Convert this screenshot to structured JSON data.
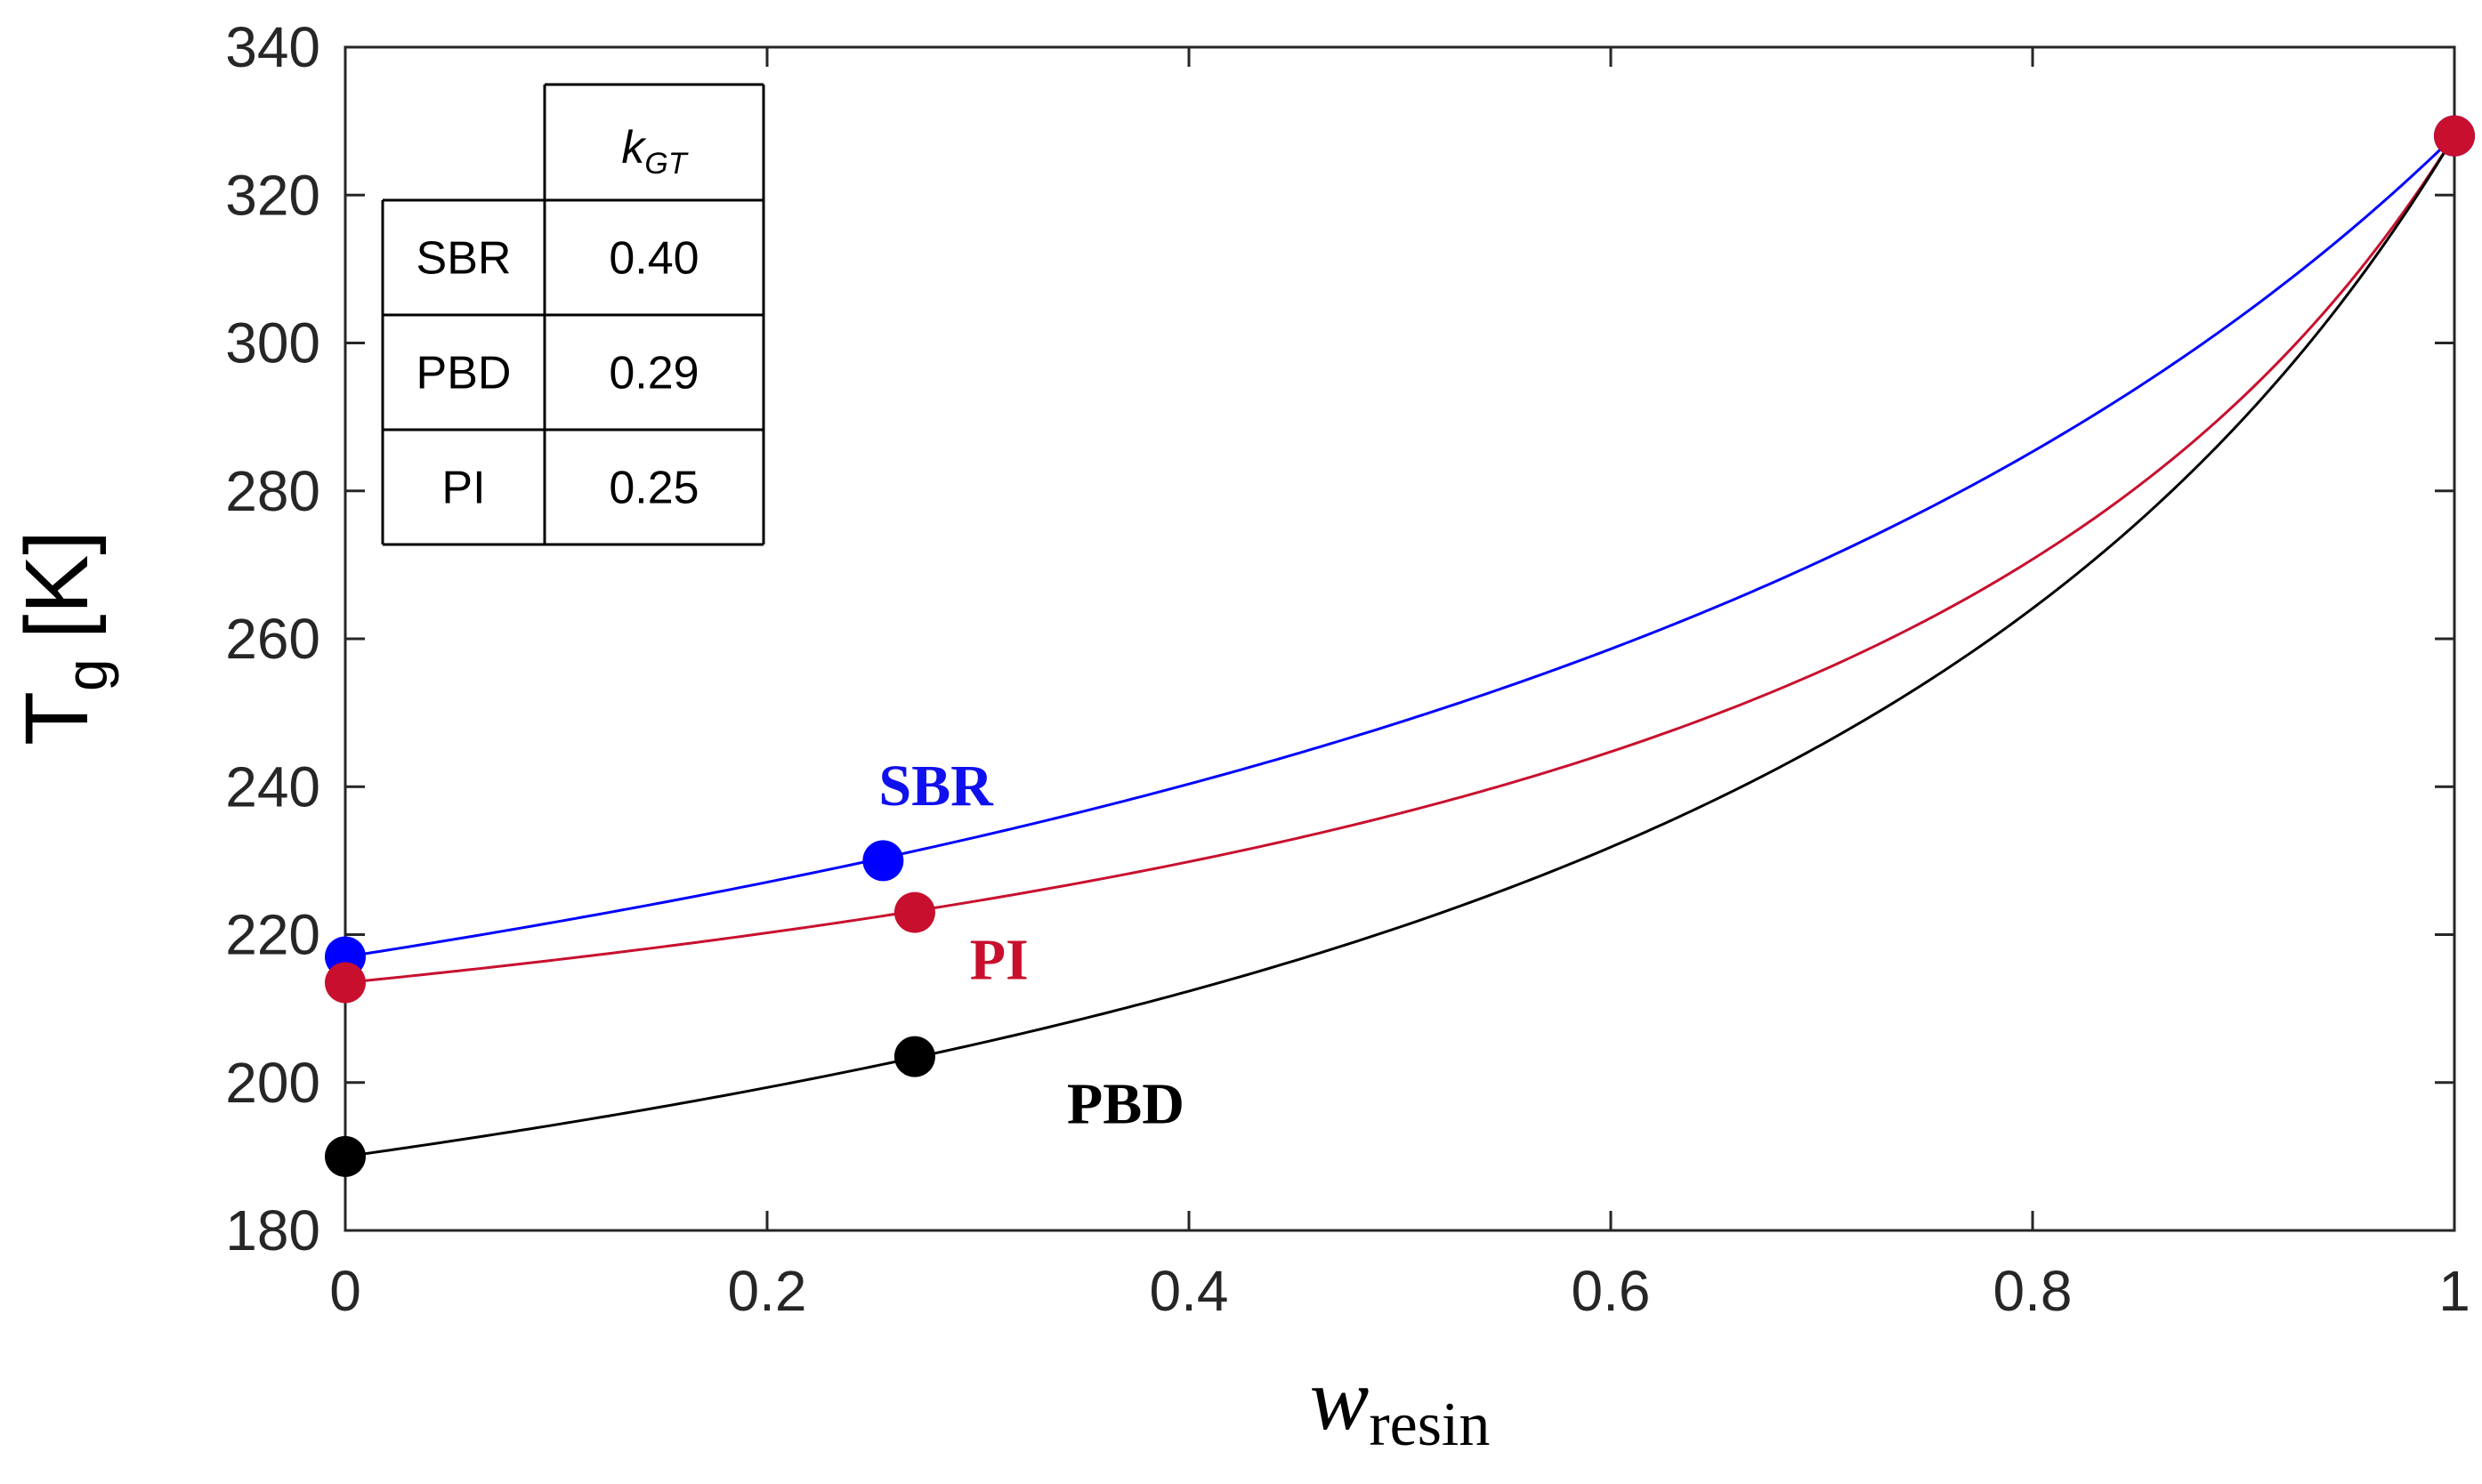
{
  "chart_data": {
    "type": "line",
    "title": "",
    "xlabel": {
      "main": "w",
      "sub": "resin"
    },
    "ylabel": {
      "main": "T",
      "sub": "g",
      "unit": "[K]"
    },
    "xlim": [
      0,
      1
    ],
    "ylim": [
      180,
      340
    ],
    "x_ticks": [
      0,
      0.2,
      0.4,
      0.6,
      0.8,
      1
    ],
    "x_tick_labels": [
      "0",
      "0.2",
      "0.4",
      "0.6",
      "0.8",
      "1"
    ],
    "y_ticks": [
      180,
      200,
      220,
      240,
      260,
      280,
      300,
      320,
      340
    ],
    "y_tick_labels": [
      "180",
      "200",
      "220",
      "240",
      "260",
      "280",
      "300",
      "320",
      "340"
    ],
    "grid": false,
    "model": "Gordon-Taylor",
    "resin_tg": 328,
    "series": [
      {
        "name": "SBR",
        "color": "#0000ff",
        "label_color": "#1010ee",
        "tg_rubber": 217,
        "k": 0.4,
        "points": [
          {
            "x": 0,
            "y": 217
          },
          {
            "x": 0.255,
            "y": 230
          },
          {
            "x": 1,
            "y": 328
          }
        ]
      },
      {
        "name": "PI",
        "color": "#c8102e",
        "label_color": "#c8102e",
        "tg_rubber": 213.5,
        "k": 0.25,
        "points": [
          {
            "x": 0,
            "y": 213.5
          },
          {
            "x": 0.27,
            "y": 223
          },
          {
            "x": 1,
            "y": 328
          }
        ]
      },
      {
        "name": "PBD",
        "color": "#000000",
        "label_color": "#000000",
        "tg_rubber": 190,
        "k": 0.29,
        "points": [
          {
            "x": 0,
            "y": 190
          },
          {
            "x": 0.27,
            "y": 203.5
          },
          {
            "x": 1,
            "y": 328
          }
        ]
      }
    ],
    "annotations": [
      {
        "text": "SBR",
        "series": "SBR",
        "x": 0.28,
        "y": 237.5
      },
      {
        "text": "PI",
        "series": "PI",
        "x": 0.31,
        "y": 214
      },
      {
        "text": "PBD",
        "series": "PBD",
        "x": 0.37,
        "y": 194.5
      }
    ],
    "inset_table": {
      "header": {
        "main": "k",
        "sub": "GT"
      },
      "rows": [
        {
          "polymer": "SBR",
          "value": "0.40"
        },
        {
          "polymer": "PBD",
          "value": "0.29"
        },
        {
          "polymer": "PI",
          "value": "0.25"
        }
      ]
    }
  }
}
